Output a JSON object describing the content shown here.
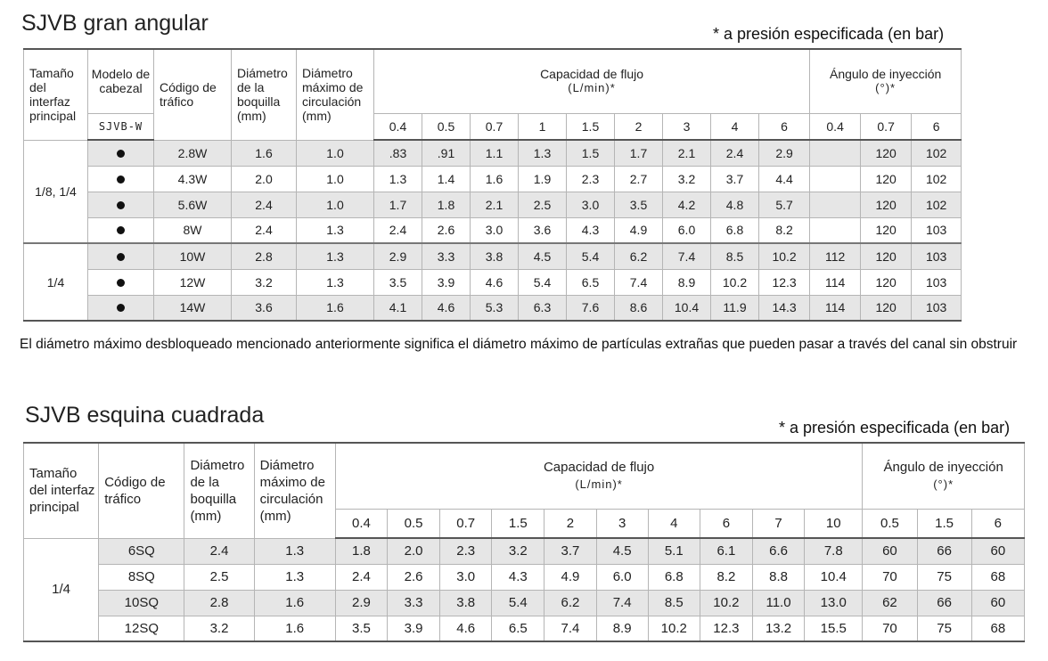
{
  "section1": {
    "title": "SJVB gran angular",
    "note": "* a presión especificada (en bar)",
    "headers": {
      "interface": "Tamaño del interfaz principal",
      "model": "Modelo de cabezal",
      "model_code": "SJVB-W",
      "traffic": "Código de tráfico",
      "nozzle": "Diámetro de la boquilla (mm)",
      "circulation": "Diámetro máximo de circulación (mm)",
      "flow": "Capacidad de flujo",
      "flow_unit": "(L/min)*",
      "angle": "Ángulo de inyección",
      "angle_unit": "(°)*"
    },
    "flow_pressures": [
      "0.4",
      "0.5",
      "0.7",
      "1",
      "1.5",
      "2",
      "3",
      "4",
      "6"
    ],
    "angle_pressures": [
      "0.4",
      "0.7",
      "6"
    ],
    "groups": [
      {
        "interface": "1/8, 1/4",
        "rows": [
          {
            "code": "2.8W",
            "nozzle": "1.6",
            "circ": "1.0",
            "flow": [
              ".83",
              ".91",
              "1.1",
              "1.3",
              "1.5",
              "1.7",
              "2.1",
              "2.4",
              "2.9"
            ],
            "angle": [
              "",
              "120",
              "102"
            ]
          },
          {
            "code": "4.3W",
            "nozzle": "2.0",
            "circ": "1.0",
            "flow": [
              "1.3",
              "1.4",
              "1.6",
              "1.9",
              "2.3",
              "2.7",
              "3.2",
              "3.7",
              "4.4"
            ],
            "angle": [
              "",
              "120",
              "102"
            ]
          },
          {
            "code": "5.6W",
            "nozzle": "2.4",
            "circ": "1.0",
            "flow": [
              "1.7",
              "1.8",
              "2.1",
              "2.5",
              "3.0",
              "3.5",
              "4.2",
              "4.8",
              "5.7"
            ],
            "angle": [
              "",
              "120",
              "102"
            ]
          },
          {
            "code": "8W",
            "nozzle": "2.4",
            "circ": "1.3",
            "flow": [
              "2.4",
              "2.6",
              "3.0",
              "3.6",
              "4.3",
              "4.9",
              "6.0",
              "6.8",
              "8.2"
            ],
            "angle": [
              "",
              "120",
              "103"
            ]
          }
        ]
      },
      {
        "interface": "1/4",
        "rows": [
          {
            "code": "10W",
            "nozzle": "2.8",
            "circ": "1.3",
            "flow": [
              "2.9",
              "3.3",
              "3.8",
              "4.5",
              "5.4",
              "6.2",
              "7.4",
              "8.5",
              "10.2"
            ],
            "angle": [
              "112",
              "120",
              "103"
            ]
          },
          {
            "code": "12W",
            "nozzle": "3.2",
            "circ": "1.3",
            "flow": [
              "3.5",
              "3.9",
              "4.6",
              "5.4",
              "6.5",
              "7.4",
              "8.9",
              "10.2",
              "12.3"
            ],
            "angle": [
              "114",
              "120",
              "103"
            ]
          },
          {
            "code": "14W",
            "nozzle": "3.6",
            "circ": "1.6",
            "flow": [
              "4.1",
              "4.6",
              "5.3",
              "6.3",
              "7.6",
              "8.6",
              "10.4",
              "11.9",
              "14.3"
            ],
            "angle": [
              "114",
              "120",
              "103"
            ]
          }
        ]
      }
    ],
    "footnote": "El diámetro máximo desbloqueado mencionado anteriormente significa el diámetro máximo de partículas extrañas que pueden pasar a través del canal sin obstruir"
  },
  "section2": {
    "title": "SJVB esquina cuadrada",
    "note": "* a presión especificada (en bar)",
    "headers": {
      "interface": "Tamaño del interfaz principal",
      "traffic": "Código de tráfico",
      "nozzle": "Diámetro de la boquilla (mm)",
      "circulation": "Diámetro máximo de circulación (mm)",
      "flow": "Capacidad de flujo",
      "flow_unit": "(L/min)*",
      "angle": "Ángulo de inyección",
      "angle_unit": "(°)*"
    },
    "flow_pressures": [
      "0.4",
      "0.5",
      "0.7",
      "1.5",
      "2",
      "3",
      "4",
      "6",
      "7",
      "10"
    ],
    "angle_pressures": [
      "0.5",
      "1.5",
      "6"
    ],
    "groups": [
      {
        "interface": "1/4",
        "rows": [
          {
            "code": "6SQ",
            "nozzle": "2.4",
            "circ": "1.3",
            "flow": [
              "1.8",
              "2.0",
              "2.3",
              "3.2",
              "3.7",
              "4.5",
              "5.1",
              "6.1",
              "6.6",
              "7.8"
            ],
            "angle": [
              "60",
              "66",
              "60"
            ]
          },
          {
            "code": "8SQ",
            "nozzle": "2.5",
            "circ": "1.3",
            "flow": [
              "2.4",
              "2.6",
              "3.0",
              "4.3",
              "4.9",
              "6.0",
              "6.8",
              "8.2",
              "8.8",
              "10.4"
            ],
            "angle": [
              "70",
              "75",
              "68"
            ]
          },
          {
            "code": "10SQ",
            "nozzle": "2.8",
            "circ": "1.6",
            "flow": [
              "2.9",
              "3.3",
              "3.8",
              "5.4",
              "6.2",
              "7.4",
              "8.5",
              "10.2",
              "11.0",
              "13.0"
            ],
            "angle": [
              "62",
              "66",
              "60"
            ]
          },
          {
            "code": "12SQ",
            "nozzle": "3.2",
            "circ": "1.6",
            "flow": [
              "3.5",
              "3.9",
              "4.6",
              "6.5",
              "7.4",
              "8.9",
              "10.2",
              "12.3",
              "13.2",
              "15.5"
            ],
            "angle": [
              "70",
              "75",
              "68"
            ]
          }
        ]
      }
    ]
  }
}
